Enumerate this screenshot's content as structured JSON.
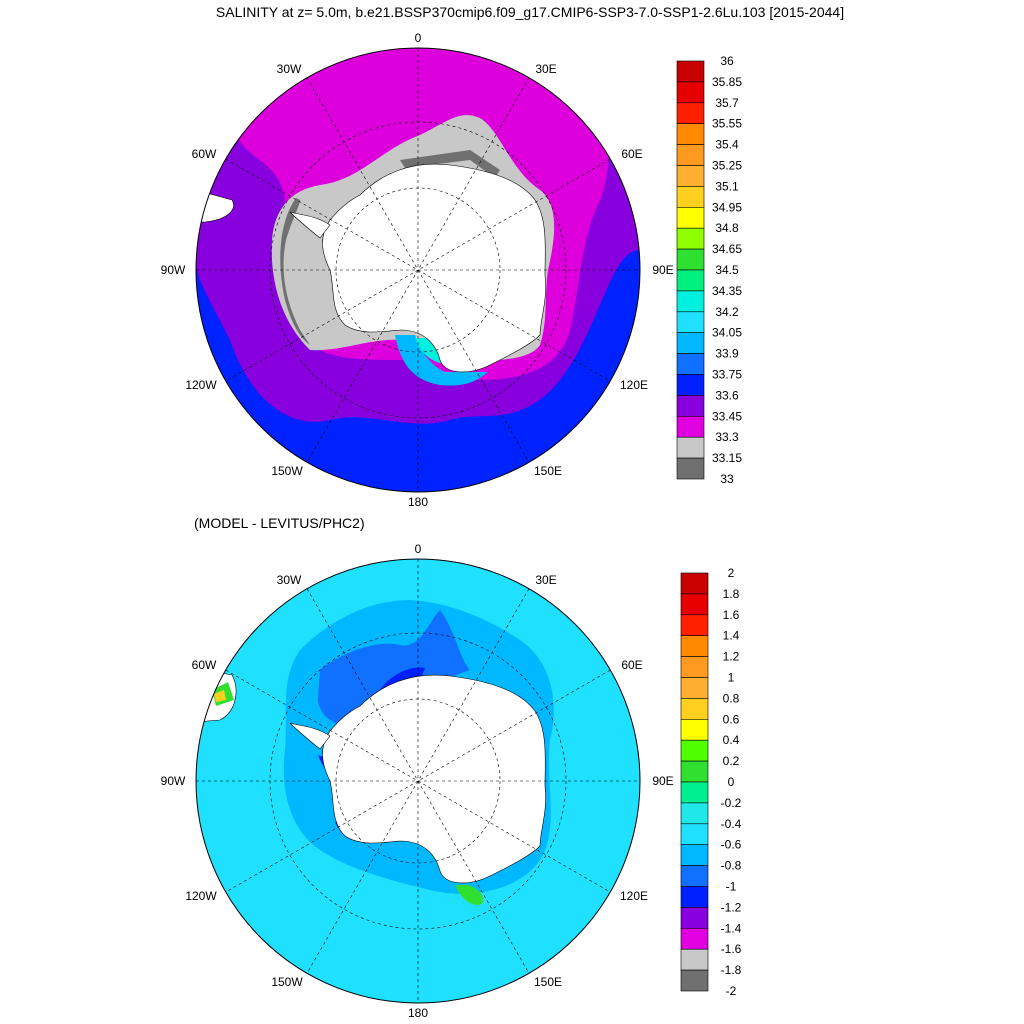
{
  "top_panel": {
    "title": "SALINITY at z=   5.0m, b.e21.BSSP370cmip6.f09_g17.CMIP6-SSP3-7.0-SSP1-2.6Lu.103 [2015-2044]",
    "lon_labels": [
      "0",
      "30E",
      "60E",
      "90E",
      "120E",
      "150E",
      "180",
      "150W",
      "120W",
      "90W",
      "60W",
      "30W"
    ],
    "colorbar": {
      "levels": [
        "36",
        "35.85",
        "35.7",
        "35.55",
        "35.4",
        "35.25",
        "35.1",
        "34.95",
        "34.8",
        "34.65",
        "34.5",
        "34.35",
        "34.2",
        "34.05",
        "33.9",
        "33.75",
        "33.6",
        "33.45",
        "33.3",
        "33.15",
        "33"
      ],
      "colors": [
        "#c80000",
        "#e60000",
        "#ff2000",
        "#ff8a00",
        "#ff9a20",
        "#ffb030",
        "#ffd020",
        "#ffff00",
        "#90ff00",
        "#30e030",
        "#00f080",
        "#00f0e0",
        "#20e0ff",
        "#00b8ff",
        "#1070ff",
        "#0020ff",
        "#8800dd",
        "#e000e0",
        "#c8c8c8",
        "#707070"
      ]
    }
  },
  "bottom_panel": {
    "title": "(MODEL - LEVITUS/PHC2)",
    "lon_labels": [
      "0",
      "30E",
      "60E",
      "90E",
      "120E",
      "150E",
      "180",
      "150W",
      "120W",
      "90W",
      "60W",
      "30W"
    ],
    "colorbar": {
      "levels": [
        "2",
        "1.8",
        "1.6",
        "1.4",
        "1.2",
        "1",
        "0.8",
        "0.6",
        "0.4",
        "0.2",
        "0",
        "-0.2",
        "-0.4",
        "-0.6",
        "-0.8",
        "-1",
        "-1.2",
        "-1.4",
        "-1.6",
        "-1.8",
        "-2"
      ],
      "colors": [
        "#c80000",
        "#e60000",
        "#ff2000",
        "#ff8a00",
        "#ff9a20",
        "#ffb030",
        "#ffd020",
        "#ffff00",
        "#50ff00",
        "#30e030",
        "#00f090",
        "#20e8e8",
        "#20e0ff",
        "#00b8ff",
        "#1070ff",
        "#0020ff",
        "#8800dd",
        "#e000e0",
        "#c8c8c8",
        "#707070"
      ]
    }
  },
  "map_colors": {
    "land": "#ffffff",
    "top_outer": "#0022ff",
    "top_mid": "#8800dd",
    "top_inner": "#dd00dd",
    "top_shelf": "#c8c8c8",
    "top_shelf_dark": "#707070",
    "top_lightblue": "#00b8ff",
    "top_cyan": "#00f0e0",
    "bot_base": "#20e0ff",
    "bot_mid": "#00b8ff",
    "bot_dark": "#1070ff",
    "bot_deep": "#0020ff",
    "bot_green": "#30e030"
  }
}
